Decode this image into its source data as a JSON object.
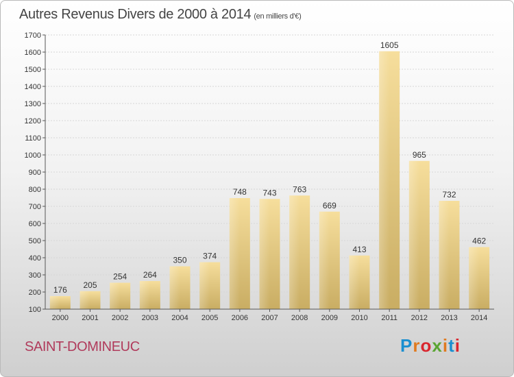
{
  "header": {
    "title": "Autres Revenus Divers de 2000 à 2014",
    "unit": "(en milliers d'€)"
  },
  "footer": {
    "city": "SAINT-DOMINEUC",
    "logo": "Proxiti",
    "logo_colors": [
      "#1a8fd0",
      "#e07a1f",
      "#d9262e",
      "#5aa532",
      "#e07a1f",
      "#1a8fd0",
      "#d9262e"
    ]
  },
  "chart_data": {
    "type": "bar",
    "title": "Autres Revenus Divers de 2000 à 2014",
    "subtitle": "(en milliers d'€)",
    "xlabel": "",
    "ylabel": "",
    "categories": [
      "2000",
      "2001",
      "2002",
      "2003",
      "2004",
      "2005",
      "2006",
      "2007",
      "2008",
      "2009",
      "2010",
      "2011",
      "2012",
      "2013",
      "2014"
    ],
    "values": [
      176,
      205,
      254,
      264,
      350,
      374,
      748,
      743,
      763,
      669,
      413,
      1605,
      965,
      732,
      462
    ],
    "ylim": [
      100,
      1700
    ],
    "yticks": [
      100,
      200,
      300,
      400,
      500,
      600,
      700,
      800,
      900,
      1000,
      1100,
      1200,
      1300,
      1400,
      1500,
      1600,
      1700
    ],
    "grid": true,
    "legend": "none",
    "bar_color": "#e8cf8a"
  }
}
